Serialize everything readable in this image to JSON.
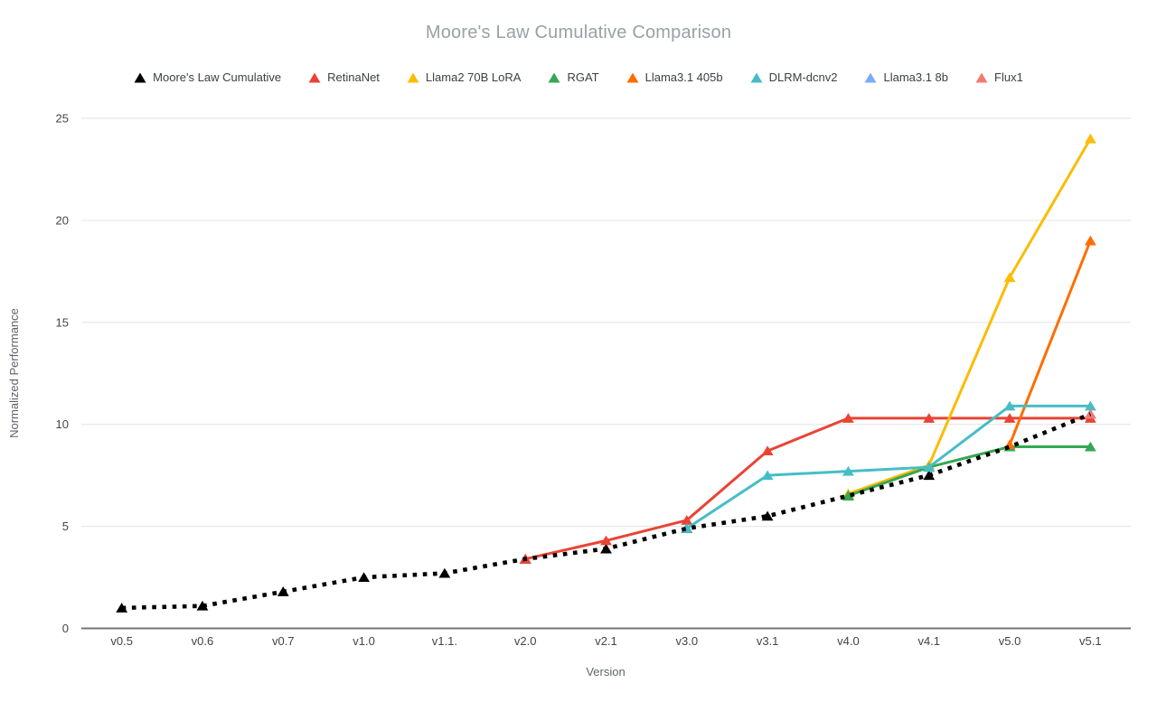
{
  "chart": {
    "title": "Moore's Law Cumulative Comparison",
    "x_axis_title": "Version",
    "y_axis_title": "Normalized Performance"
  },
  "chart_data": {
    "type": "line",
    "title": "Moore's Law Cumulative Comparison",
    "xlabel": "Version",
    "ylabel": "Normalized Performance",
    "ylim": [
      0,
      25
    ],
    "y_ticks": [
      0,
      5,
      10,
      15,
      20,
      25
    ],
    "grid": true,
    "legend_position": "top",
    "marker_shape": "triangle",
    "categories": [
      "v0.5",
      "v0.6",
      "v0.7",
      "v1.0",
      "v1.1.",
      "v2.0",
      "v2.1",
      "v3.0",
      "v3.1",
      "v4.0",
      "v4.1",
      "v5.0",
      "v5.1"
    ],
    "series": [
      {
        "name": "Moore's Law Cumulative",
        "color": "#000000",
        "line_style": "dotted",
        "values": [
          1.0,
          1.1,
          1.8,
          2.5,
          2.7,
          3.4,
          3.9,
          4.9,
          5.5,
          6.5,
          7.5,
          8.9,
          10.5
        ]
      },
      {
        "name": "RetinaNet",
        "color": "#ea4335",
        "line_style": "solid",
        "values": [
          null,
          null,
          null,
          null,
          null,
          3.4,
          4.3,
          5.3,
          8.7,
          10.3,
          10.3,
          10.3,
          10.3
        ]
      },
      {
        "name": "Llama2 70B LoRA",
        "color": "#fbbc04",
        "line_style": "solid",
        "values": [
          null,
          null,
          null,
          null,
          null,
          null,
          null,
          null,
          null,
          6.6,
          8.0,
          17.2,
          24.0
        ]
      },
      {
        "name": "RGAT",
        "color": "#34a853",
        "line_style": "solid",
        "values": [
          null,
          null,
          null,
          null,
          null,
          null,
          null,
          null,
          null,
          6.5,
          7.9,
          8.9,
          8.9
        ]
      },
      {
        "name": "Llama3.1 405b",
        "color": "#ff6d01",
        "line_style": "solid",
        "values": [
          null,
          null,
          null,
          null,
          null,
          null,
          null,
          null,
          null,
          null,
          null,
          9.0,
          19.0
        ]
      },
      {
        "name": "DLRM-dcnv2",
        "color": "#46bdc6",
        "line_style": "solid",
        "values": [
          null,
          null,
          null,
          null,
          null,
          null,
          null,
          4.9,
          7.5,
          7.7,
          7.9,
          10.9,
          10.9
        ]
      },
      {
        "name": "Llama3.1 8b",
        "color": "#7baaf7",
        "line_style": "solid",
        "values": [
          null,
          null,
          null,
          null,
          null,
          null,
          null,
          null,
          null,
          null,
          null,
          null,
          10.5
        ]
      },
      {
        "name": "Flux1",
        "color": "#f07b72",
        "line_style": "solid",
        "values": [
          null,
          null,
          null,
          null,
          null,
          null,
          null,
          null,
          null,
          null,
          null,
          null,
          10.5
        ]
      }
    ]
  }
}
